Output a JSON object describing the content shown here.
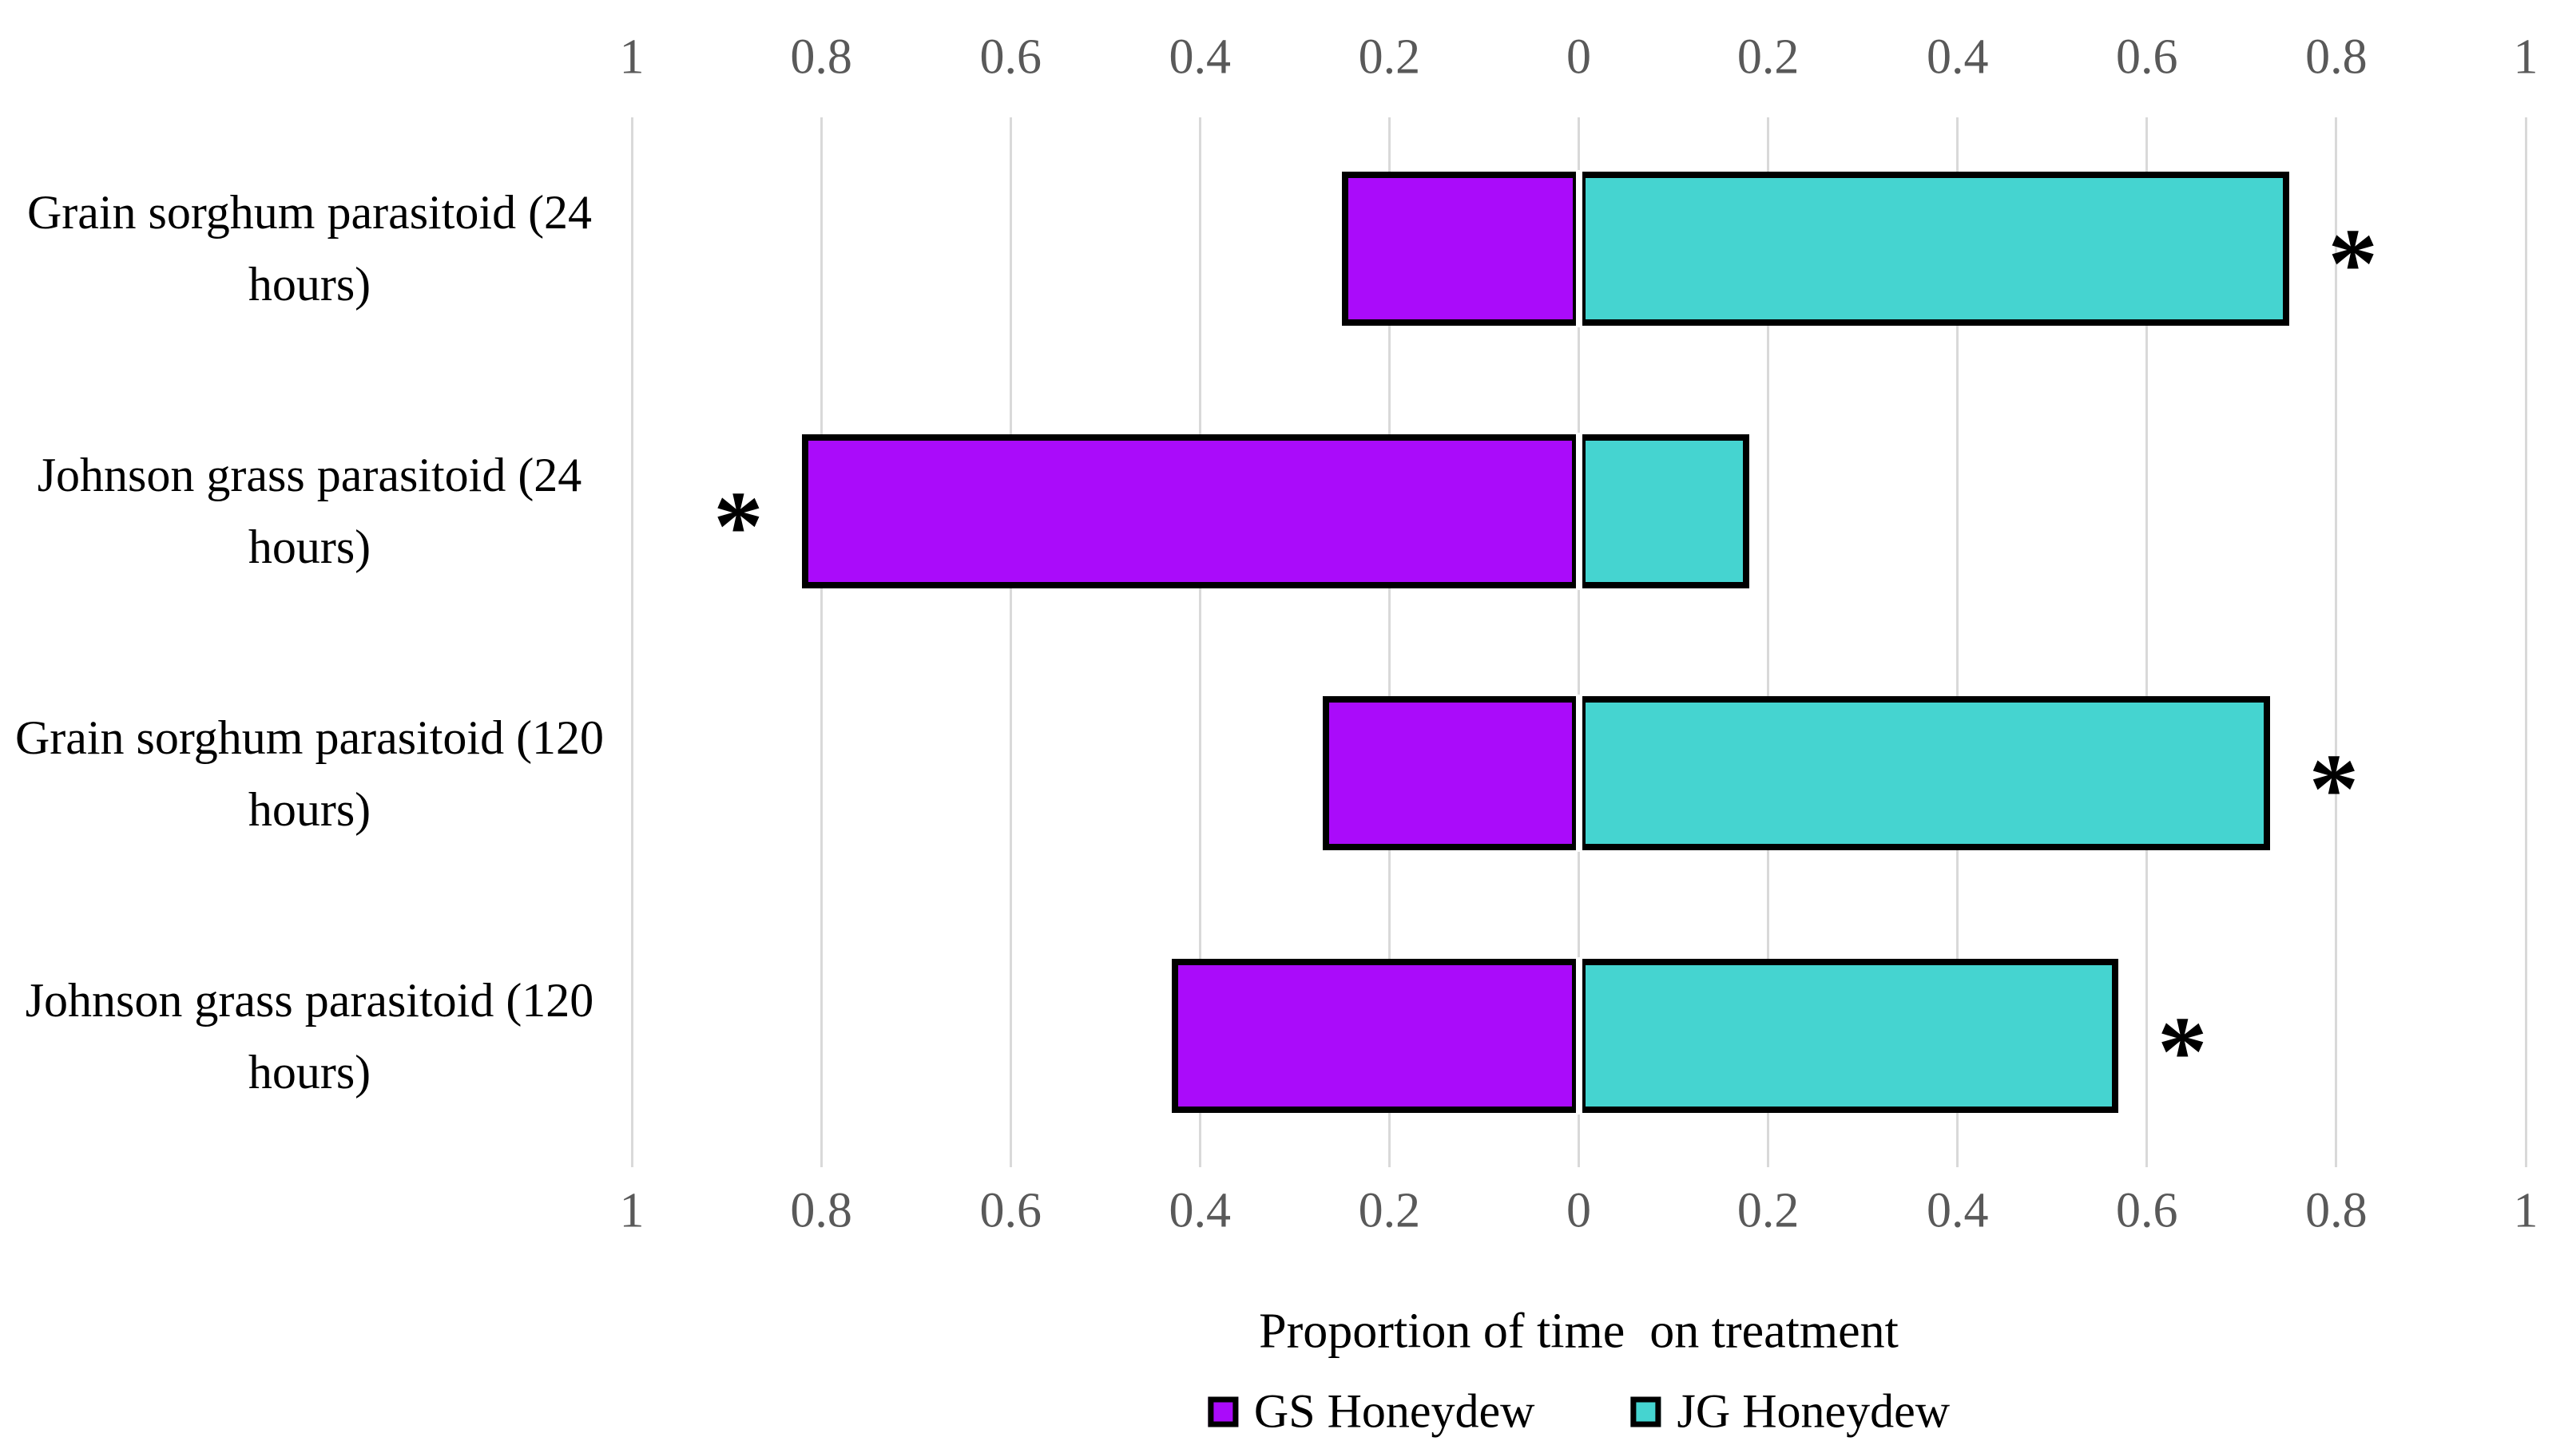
{
  "chart_data": {
    "type": "bar",
    "variant": "horizontal-diverging-stacked",
    "title": "",
    "xlabel": "Proportion of time  on treatment",
    "ylabel": "",
    "axis_range": [
      -1,
      1
    ],
    "axis_tick_labels": [
      "1",
      "0.8",
      "0.6",
      "0.4",
      "0.2",
      "0",
      "0.2",
      "0.4",
      "0.6",
      "0.8",
      "1"
    ],
    "axis_tick_values": [
      -1,
      -0.8,
      -0.6,
      -0.4,
      -0.2,
      0,
      0.2,
      0.4,
      0.6,
      0.8,
      1
    ],
    "grid": true,
    "legend_position": "bottom",
    "categories": [
      "Grain sorghum parasitoid (24 hours)",
      "Johnson grass parasitoid (24 hours)",
      "Grain sorghum parasitoid (120 hours)",
      "Johnson grass parasitoid (120 hours)"
    ],
    "series": [
      {
        "name": "GS Honeydew",
        "direction": "left",
        "color": "#AA0BFA",
        "values": [
          0.25,
          0.82,
          0.27,
          0.43
        ]
      },
      {
        "name": "JG Honeydew",
        "direction": "right",
        "color": "#45D4D0",
        "values": [
          0.75,
          0.18,
          0.73,
          0.57
        ]
      }
    ],
    "annotations": [
      {
        "row": 0,
        "symbol": "*",
        "side": "right"
      },
      {
        "row": 1,
        "symbol": "*",
        "side": "left"
      },
      {
        "row": 2,
        "symbol": "*",
        "side": "right"
      },
      {
        "row": 3,
        "symbol": "*",
        "side": "right"
      }
    ]
  },
  "theme": {
    "background": "#ffffff",
    "gridline_color": "#D9D9D9",
    "tick_label_color": "#595959",
    "bar_border_color": "#000000",
    "text_color": "#000000",
    "zero_separator_color": "#ffffff"
  }
}
